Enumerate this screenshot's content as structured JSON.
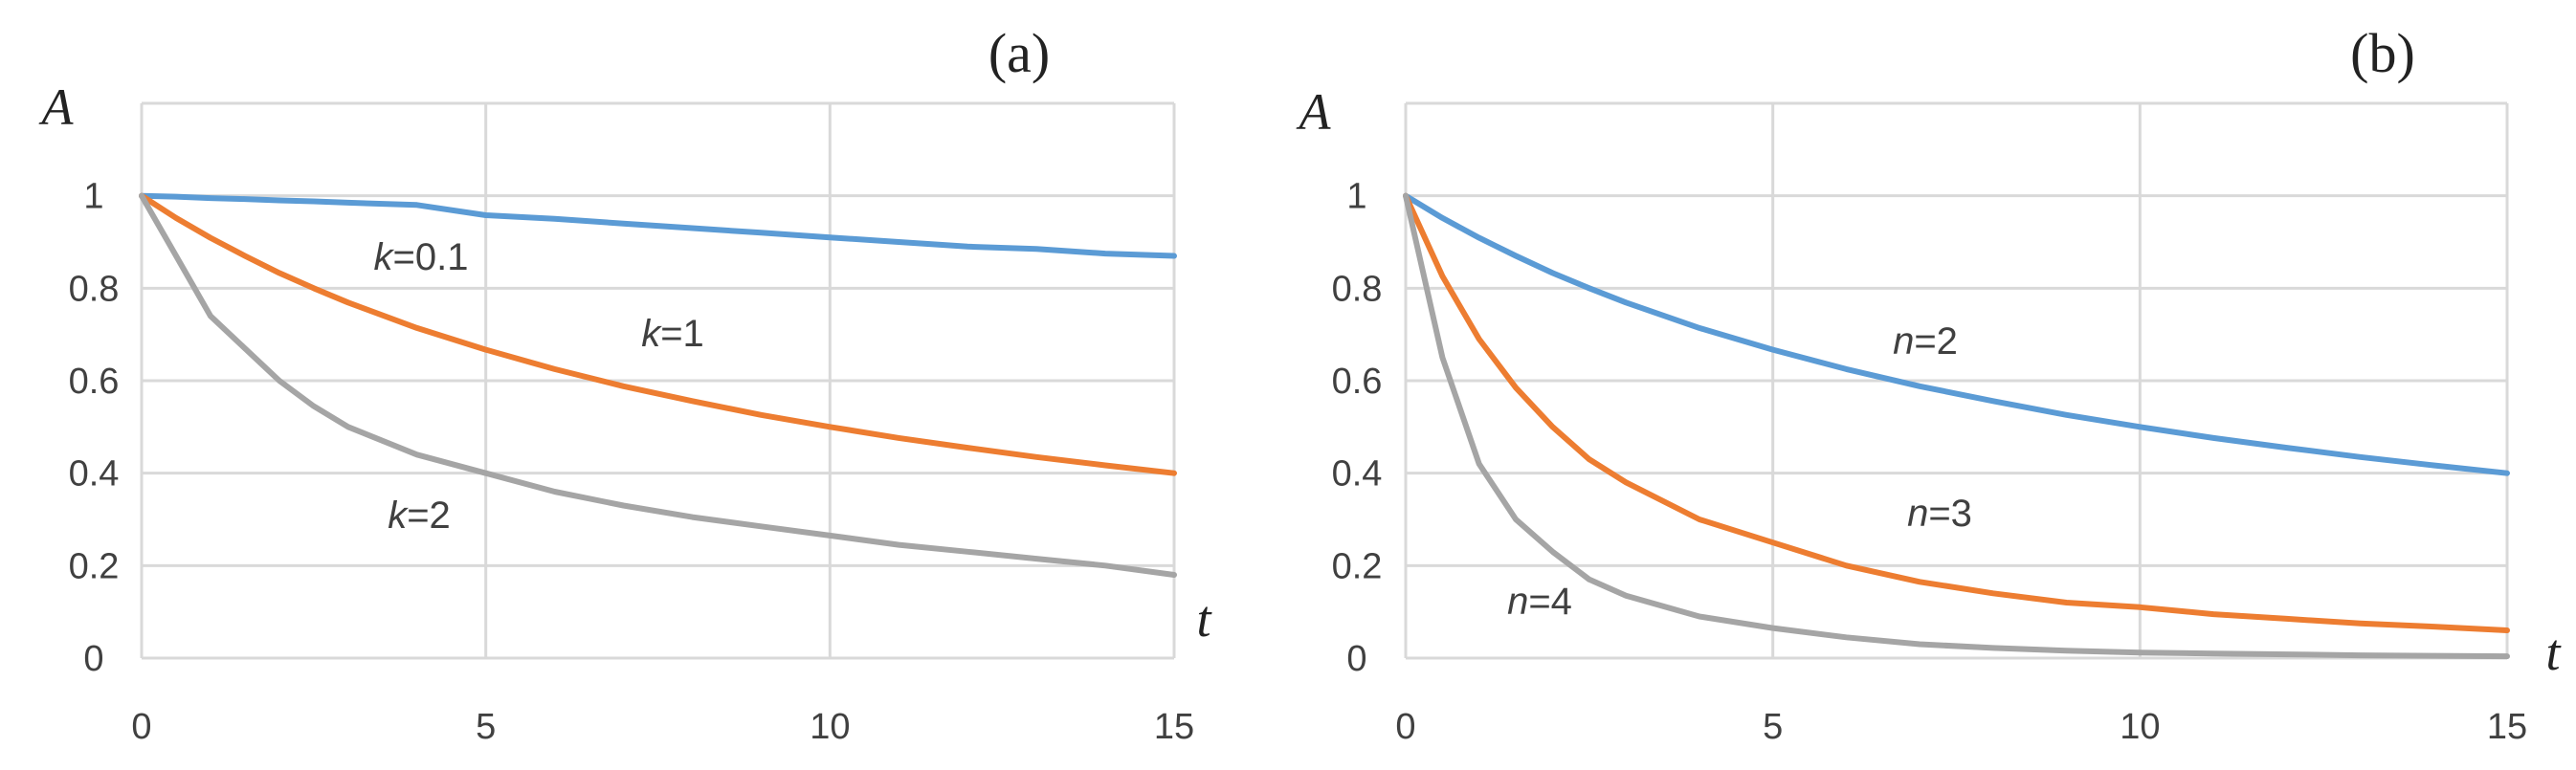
{
  "chart_data": [
    {
      "type": "line",
      "panel_label": "(a)",
      "xlabel": "t",
      "ylabel": "A",
      "xlim": [
        0,
        15
      ],
      "ylim": [
        0,
        1.2
      ],
      "x_ticks": [
        "0",
        "5",
        "10",
        "15"
      ],
      "y_ticks": [
        "0",
        "0.2",
        "0.4",
        "0.6",
        "0.8",
        "1"
      ],
      "grid": true,
      "x": [
        0,
        0.5,
        1,
        1.5,
        2,
        2.5,
        3,
        4,
        5,
        6,
        7,
        8,
        9,
        10,
        11,
        12,
        13,
        14,
        15
      ],
      "series": [
        {
          "var": "k",
          "eq": "=0.1",
          "color": "#5b9bd5",
          "values": [
            1.0,
            0.998,
            0.995,
            0.993,
            0.99,
            0.988,
            0.985,
            0.98,
            0.958,
            0.95,
            0.94,
            0.93,
            0.92,
            0.91,
            0.9,
            0.89,
            0.885,
            0.875,
            0.87
          ]
        },
        {
          "var": "k",
          "eq": "=1",
          "color": "#ed7d31",
          "values": [
            1.0,
            0.952,
            0.909,
            0.87,
            0.833,
            0.8,
            0.769,
            0.714,
            0.667,
            0.625,
            0.588,
            0.556,
            0.526,
            0.5,
            0.476,
            0.455,
            0.435,
            0.417,
            0.4
          ]
        },
        {
          "var": "k",
          "eq": "=2",
          "color": "#a5a5a5",
          "values": [
            1.0,
            0.87,
            0.74,
            0.67,
            0.6,
            0.545,
            0.5,
            0.44,
            0.4,
            0.36,
            0.33,
            0.305,
            0.285,
            0.265,
            0.245,
            0.23,
            0.215,
            0.2,
            0.18
          ]
        }
      ]
    },
    {
      "type": "line",
      "panel_label": "(b)",
      "xlabel": "t",
      "ylabel": "A",
      "xlim": [
        0,
        15
      ],
      "ylim": [
        0,
        1.2
      ],
      "x_ticks": [
        "0",
        "5",
        "10",
        "15"
      ],
      "y_ticks": [
        "0",
        "0.2",
        "0.4",
        "0.6",
        "0.8",
        "1"
      ],
      "grid": true,
      "x": [
        0,
        0.5,
        1,
        1.5,
        2,
        2.5,
        3,
        4,
        5,
        6,
        7,
        8,
        9,
        10,
        11,
        12,
        13,
        14,
        15
      ],
      "series": [
        {
          "var": "n",
          "eq": "=2",
          "color": "#5b9bd5",
          "values": [
            1.0,
            0.952,
            0.909,
            0.87,
            0.833,
            0.8,
            0.769,
            0.714,
            0.667,
            0.625,
            0.588,
            0.556,
            0.526,
            0.5,
            0.476,
            0.455,
            0.435,
            0.417,
            0.4
          ]
        },
        {
          "var": "n",
          "eq": "=3",
          "color": "#ed7d31",
          "values": [
            1.0,
            0.826,
            0.69,
            0.585,
            0.5,
            0.43,
            0.38,
            0.3,
            0.25,
            0.2,
            0.165,
            0.14,
            0.12,
            0.11,
            0.095,
            0.085,
            0.075,
            0.068,
            0.06
          ]
        },
        {
          "var": "n",
          "eq": "=4",
          "color": "#a5a5a5",
          "values": [
            1.0,
            0.65,
            0.42,
            0.3,
            0.23,
            0.17,
            0.135,
            0.09,
            0.065,
            0.045,
            0.03,
            0.022,
            0.016,
            0.012,
            0.01,
            0.008,
            0.006,
            0.005,
            0.004
          ]
        }
      ]
    }
  ]
}
